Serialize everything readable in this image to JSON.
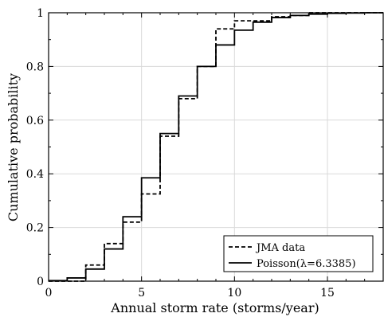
{
  "chart_data": {
    "type": "line",
    "title": "",
    "xlabel": "Annual storm rate (storms/year)",
    "ylabel": "Cumulative probability",
    "xlim": [
      0,
      18
    ],
    "ylim": [
      0,
      1
    ],
    "x_ticks": [
      0,
      5,
      10,
      15
    ],
    "y_ticks": [
      0,
      0.2,
      0.4,
      0.6,
      0.8,
      1
    ],
    "x_tick_labels": [
      "0",
      "5",
      "10",
      "15"
    ],
    "y_tick_labels": [
      "0",
      "0.2",
      "0.4",
      "0.6",
      "0.8",
      "1"
    ],
    "grid": true,
    "step": true,
    "legend_position": "bottom-right",
    "series": [
      {
        "name": "JMA data",
        "line_style": "dashed",
        "color": "#000000",
        "x": [
          0,
          1,
          2,
          3,
          4,
          5,
          6,
          7,
          8,
          9,
          10,
          11,
          12,
          13,
          14,
          15,
          16,
          17,
          18
        ],
        "y": [
          0.0,
          0.0,
          0.06,
          0.14,
          0.22,
          0.325,
          0.54,
          0.68,
          0.8,
          0.94,
          0.97,
          0.97,
          0.985,
          0.99,
          1.0,
          1.0,
          1.0,
          1.0,
          1.0
        ]
      },
      {
        "name": "Poisson(λ=6.3385)",
        "line_style": "solid",
        "color": "#000000",
        "x": [
          0,
          1,
          2,
          3,
          4,
          5,
          6,
          7,
          8,
          9,
          10,
          11,
          12,
          13,
          14,
          15,
          16,
          17,
          18
        ],
        "y": [
          0.002,
          0.012,
          0.045,
          0.12,
          0.24,
          0.385,
          0.55,
          0.69,
          0.8,
          0.88,
          0.935,
          0.965,
          0.982,
          0.99,
          0.995,
          0.998,
          0.999,
          1.0,
          1.0
        ]
      }
    ]
  }
}
